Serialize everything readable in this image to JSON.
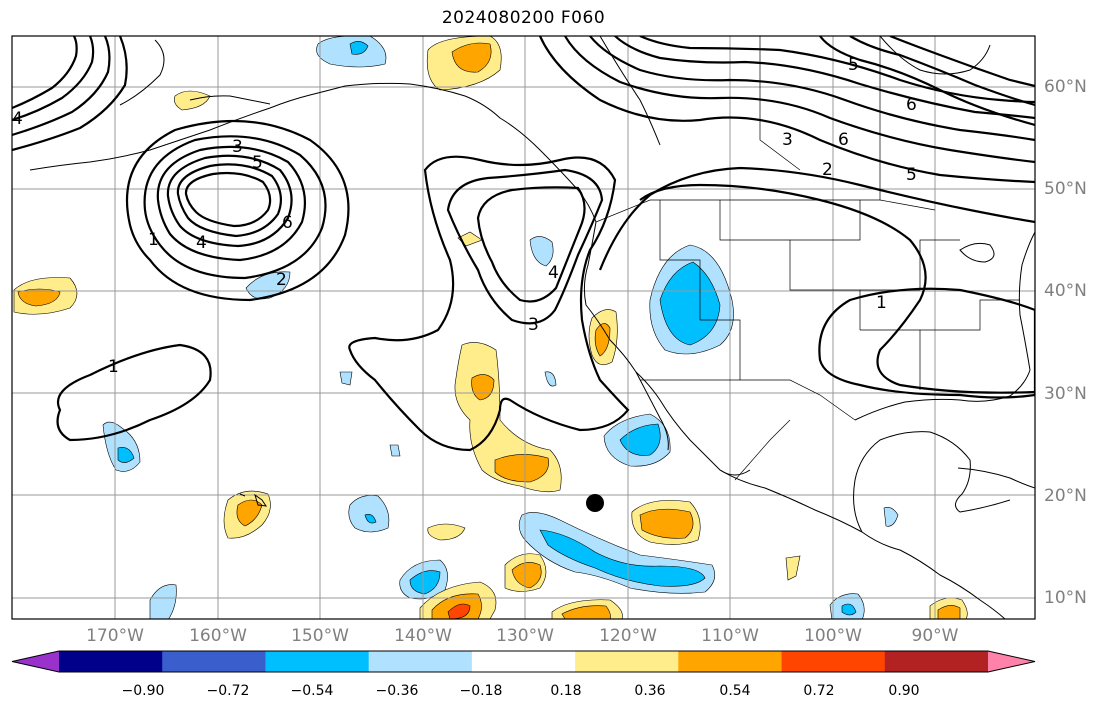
{
  "title": "2024080200 F060",
  "lat_labels": [
    "60°N",
    "50°N",
    "40°N",
    "30°N",
    "20°N",
    "10°N"
  ],
  "lon_labels": [
    "170°W",
    "160°W",
    "150°W",
    "140°W",
    "130°W",
    "120°W",
    "110°W",
    "100°W",
    "90°W"
  ],
  "contour_labels": [
    "1",
    "2",
    "3",
    "4",
    "5",
    "6"
  ],
  "colorbar": {
    "tick_labels": [
      "−0.90",
      "−0.72",
      "−0.54",
      "−0.36",
      "−0.18",
      "0.18",
      "0.36",
      "0.54",
      "0.72",
      "0.90"
    ],
    "colors": [
      "#9932cc",
      "#00008b",
      "#3a5fcd",
      "#00bfff",
      "#b0e2ff",
      "#ffffff",
      "#ffec8b",
      "#ffa500",
      "#ff4500",
      "#b22222",
      "#ff82ab"
    ]
  },
  "palette": {
    "frame": "#000000",
    "grid": "#999999",
    "coast": "#000000",
    "axis_label": "#808080"
  }
}
